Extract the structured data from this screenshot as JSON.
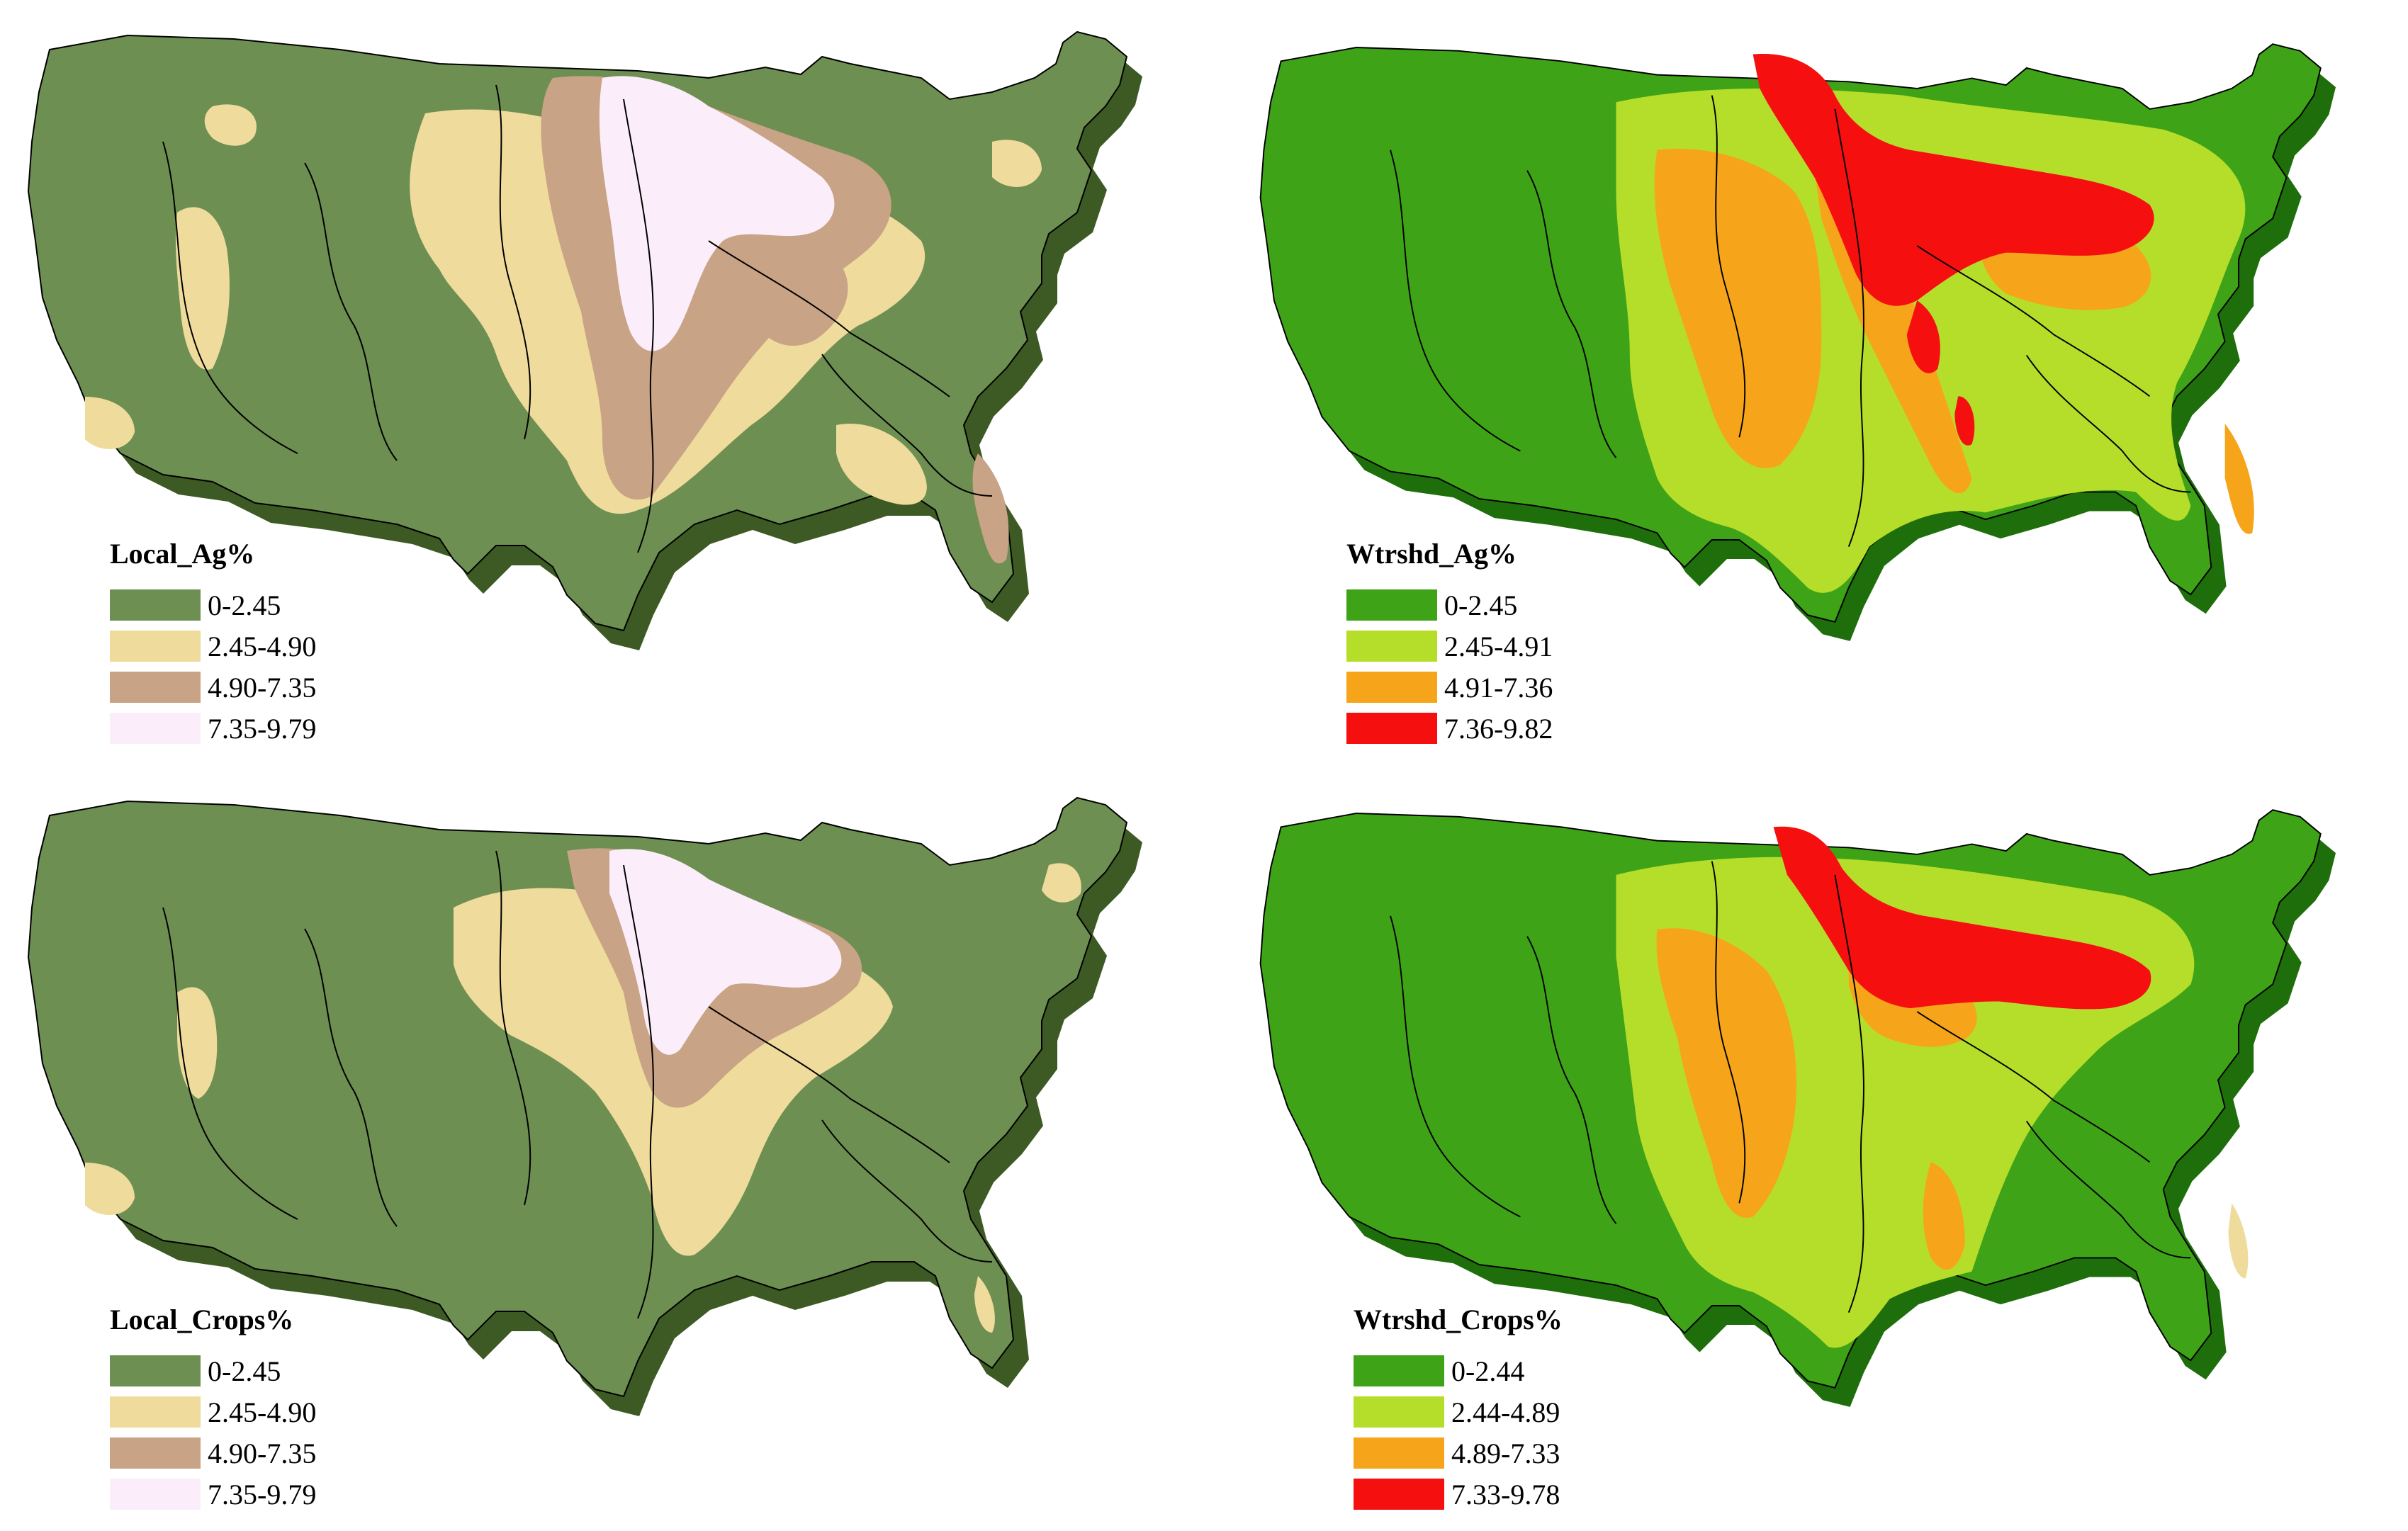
{
  "panels": [
    {
      "id": "local-ag",
      "title": "Local_Ag%",
      "legend": [
        {
          "label": "0-2.45",
          "color": "#6e8f52"
        },
        {
          "label": "2.45-4.90",
          "color": "#efdc9c"
        },
        {
          "label": "4.90-7.35",
          "color": "#c9a385"
        },
        {
          "label": "7.35-9.79",
          "color": "#fbeefa"
        }
      ]
    },
    {
      "id": "watershed-ag",
      "title": "Wtrshd_Ag%",
      "legend": [
        {
          "label": "0-2.45",
          "color": "#3fa318"
        },
        {
          "label": "2.45-4.91",
          "color": "#b5de2a"
        },
        {
          "label": "4.91-7.36",
          "color": "#f6a51a"
        },
        {
          "label": "7.36-9.82",
          "color": "#f50f0f"
        }
      ]
    },
    {
      "id": "local-crops",
      "title": "Local_Crops%",
      "legend": [
        {
          "label": "0-2.45",
          "color": "#6e8f52"
        },
        {
          "label": "2.45-4.90",
          "color": "#efdc9c"
        },
        {
          "label": "4.90-7.35",
          "color": "#c9a385"
        },
        {
          "label": "7.35-9.79",
          "color": "#fbeefa"
        }
      ]
    },
    {
      "id": "watershed-crops",
      "title": "Wtrshd_Crops%",
      "legend": [
        {
          "label": "0-2.44",
          "color": "#3fa318"
        },
        {
          "label": "2.44-4.89",
          "color": "#b5de2a"
        },
        {
          "label": "4.89-7.33",
          "color": "#f6a51a"
        },
        {
          "label": "7.33-9.78",
          "color": "#f50f0f"
        }
      ]
    }
  ]
}
